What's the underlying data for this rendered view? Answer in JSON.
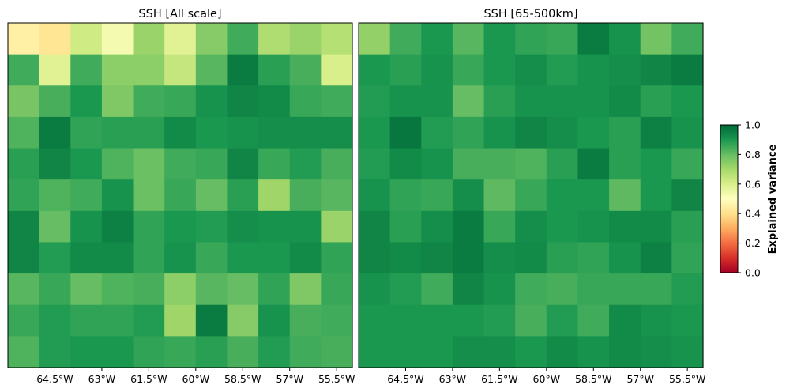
{
  "chart_data": [
    {
      "type": "heatmap",
      "title": "SSH [All scale]",
      "xlabel": "",
      "ylabel": "",
      "x_ticks": [
        "64.5°W",
        "63°W",
        "61.5°W",
        "60°W",
        "58.5°W",
        "57°W",
        "55.5°W"
      ],
      "y_ticks": [],
      "values": [
        [
          0.45,
          0.42,
          0.62,
          0.53,
          0.72,
          0.58,
          0.75,
          0.85,
          0.68,
          0.72,
          0.67
        ],
        [
          0.85,
          0.58,
          0.85,
          0.74,
          0.74,
          0.64,
          0.82,
          0.96,
          0.88,
          0.84,
          0.6
        ],
        [
          0.77,
          0.84,
          0.9,
          0.76,
          0.85,
          0.86,
          0.91,
          0.94,
          0.93,
          0.86,
          0.85
        ],
        [
          0.83,
          0.96,
          0.87,
          0.88,
          0.88,
          0.93,
          0.9,
          0.91,
          0.92,
          0.92,
          0.92
        ],
        [
          0.88,
          0.94,
          0.9,
          0.83,
          0.79,
          0.85,
          0.86,
          0.94,
          0.86,
          0.89,
          0.84
        ],
        [
          0.87,
          0.83,
          0.85,
          0.91,
          0.79,
          0.86,
          0.8,
          0.88,
          0.71,
          0.84,
          0.82
        ],
        [
          0.94,
          0.8,
          0.91,
          0.95,
          0.87,
          0.9,
          0.89,
          0.92,
          0.91,
          0.91,
          0.72
        ],
        [
          0.94,
          0.89,
          0.93,
          0.93,
          0.87,
          0.91,
          0.86,
          0.9,
          0.9,
          0.93,
          0.87
        ],
        [
          0.82,
          0.86,
          0.8,
          0.83,
          0.84,
          0.74,
          0.82,
          0.8,
          0.87,
          0.76,
          0.86
        ],
        [
          0.86,
          0.89,
          0.87,
          0.87,
          0.89,
          0.71,
          0.96,
          0.75,
          0.91,
          0.84,
          0.85
        ],
        [
          0.83,
          0.89,
          0.9,
          0.9,
          0.87,
          0.86,
          0.88,
          0.84,
          0.89,
          0.85,
          0.84
        ]
      ]
    },
    {
      "type": "heatmap",
      "title": "SSH [65-500km]",
      "xlabel": "",
      "ylabel": "",
      "x_ticks": [
        "64.5°W",
        "63°W",
        "61.5°W",
        "60°W",
        "58.5°W",
        "57°W",
        "55.5°W"
      ],
      "y_ticks": [],
      "values": [
        [
          0.73,
          0.85,
          0.9,
          0.82,
          0.9,
          0.87,
          0.86,
          0.96,
          0.91,
          0.78,
          0.85
        ],
        [
          0.9,
          0.88,
          0.91,
          0.86,
          0.9,
          0.92,
          0.89,
          0.91,
          0.92,
          0.94,
          0.96
        ],
        [
          0.89,
          0.91,
          0.91,
          0.8,
          0.88,
          0.91,
          0.91,
          0.91,
          0.93,
          0.88,
          0.9
        ],
        [
          0.9,
          0.97,
          0.89,
          0.87,
          0.91,
          0.94,
          0.92,
          0.9,
          0.88,
          0.95,
          0.91
        ],
        [
          0.89,
          0.93,
          0.91,
          0.84,
          0.84,
          0.83,
          0.88,
          0.96,
          0.88,
          0.9,
          0.86
        ],
        [
          0.91,
          0.87,
          0.86,
          0.92,
          0.81,
          0.86,
          0.9,
          0.9,
          0.81,
          0.9,
          0.94
        ],
        [
          0.94,
          0.88,
          0.92,
          0.96,
          0.86,
          0.92,
          0.9,
          0.91,
          0.93,
          0.93,
          0.88
        ],
        [
          0.94,
          0.93,
          0.94,
          0.96,
          0.92,
          0.93,
          0.88,
          0.87,
          0.91,
          0.95,
          0.87
        ],
        [
          0.91,
          0.89,
          0.85,
          0.94,
          0.91,
          0.85,
          0.84,
          0.86,
          0.86,
          0.86,
          0.89
        ],
        [
          0.9,
          0.9,
          0.9,
          0.9,
          0.89,
          0.84,
          0.89,
          0.85,
          0.93,
          0.91,
          0.9
        ],
        [
          0.9,
          0.9,
          0.9,
          0.92,
          0.92,
          0.9,
          0.93,
          0.91,
          0.93,
          0.92,
          0.91
        ]
      ]
    }
  ],
  "colorbar": {
    "label": "Explained variance",
    "range": [
      0.0,
      1.0
    ],
    "ticks": [
      "0.0",
      "0.2",
      "0.4",
      "0.6",
      "0.8",
      "1.0"
    ],
    "colormap": "RdYlGn",
    "colormap_stops": [
      "#a50026",
      "#d73027",
      "#f46d43",
      "#fdae61",
      "#fee08b",
      "#ffffbf",
      "#d9ef8b",
      "#a6d96a",
      "#66bd63",
      "#1a9850",
      "#006837"
    ]
  }
}
